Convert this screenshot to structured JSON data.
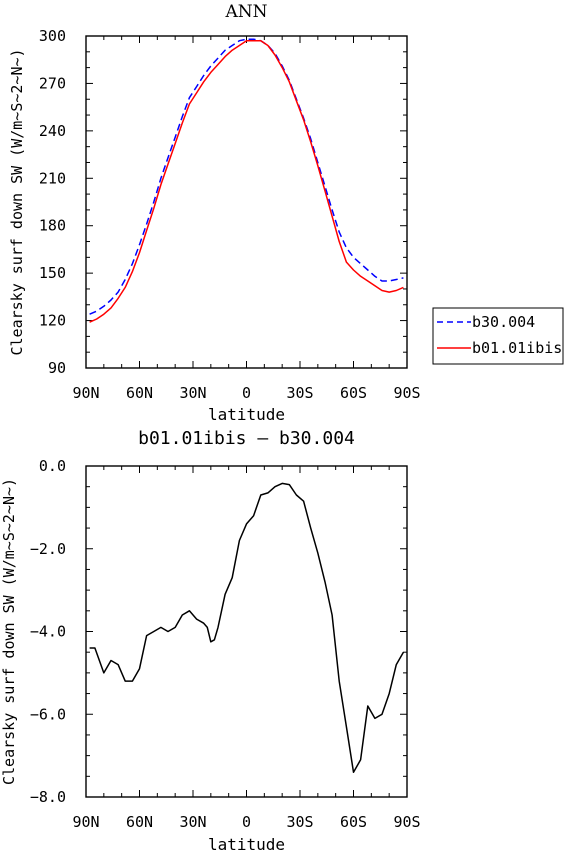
{
  "chart_data": [
    {
      "type": "line",
      "title": "ANN",
      "xlabel": "latitude",
      "ylabel": "Clearsky surf down SW (W/m~S~2~N~)",
      "xlim": [
        90,
        -90
      ],
      "ylim": [
        90,
        300
      ],
      "x_ticks": [
        90,
        60,
        30,
        0,
        -30,
        -60,
        -90
      ],
      "x_tick_labels": [
        "90N",
        "60N",
        "30N",
        "0",
        "30S",
        "60S",
        "90S"
      ],
      "y_ticks": [
        90,
        120,
        150,
        180,
        210,
        240,
        270,
        300
      ],
      "y_tick_labels": [
        "90",
        "120",
        "150",
        "180",
        "210",
        "240",
        "270",
        "300"
      ],
      "legend_position": "right",
      "series": [
        {
          "name": "b30.004",
          "color": "#0000ff",
          "style": "dashed",
          "x": [
            88,
            84,
            80,
            76,
            72,
            68,
            64,
            60,
            56,
            52,
            48,
            44,
            40,
            36,
            32,
            28,
            24,
            20,
            16,
            12,
            8,
            4,
            0,
            -4,
            -8,
            -12,
            -16,
            -20,
            -24,
            -28,
            -32,
            -36,
            -40,
            -44,
            -48,
            -52,
            -56,
            -60,
            -64,
            -68,
            -72,
            -76,
            -80,
            -84,
            -88
          ],
          "values": [
            124,
            126,
            129,
            133,
            138,
            146,
            156,
            168,
            181,
            195,
            210,
            223,
            236,
            249,
            261,
            268,
            275,
            281,
            286,
            291,
            294,
            297,
            298,
            298,
            297,
            294,
            289,
            281,
            272,
            260,
            248,
            235,
            220,
            205,
            190,
            176,
            166,
            160,
            156,
            152,
            148,
            145,
            145,
            146,
            147
          ]
        },
        {
          "name": "b01.01ibis",
          "color": "#ff0000",
          "style": "solid",
          "x": [
            88,
            84,
            80,
            76,
            72,
            68,
            64,
            60,
            56,
            52,
            48,
            44,
            40,
            36,
            32,
            28,
            24,
            20,
            16,
            12,
            8,
            4,
            0,
            -4,
            -8,
            -12,
            -16,
            -20,
            -24,
            -28,
            -32,
            -36,
            -40,
            -44,
            -48,
            -52,
            -56,
            -60,
            -64,
            -68,
            -72,
            -76,
            -80,
            -84,
            -88
          ],
          "values": [
            119,
            121,
            124,
            128,
            134,
            141,
            151,
            163,
            177,
            191,
            206,
            219,
            232,
            245,
            257,
            264,
            271,
            277,
            282,
            287,
            291,
            294,
            297,
            297,
            297,
            294,
            288,
            280,
            271,
            259,
            247,
            233,
            218,
            202,
            186,
            170,
            157,
            152,
            148,
            145,
            142,
            139,
            138,
            139,
            141
          ]
        }
      ]
    },
    {
      "type": "line",
      "title": "b01.01ibis – b30.004",
      "xlabel": "latitude",
      "ylabel": "Clearsky surf down SW (W/m~S~2~N~)",
      "xlim": [
        90,
        -90
      ],
      "ylim": [
        -8.0,
        0.0
      ],
      "x_ticks": [
        90,
        60,
        30,
        0,
        -30,
        -60,
        -90
      ],
      "x_tick_labels": [
        "90N",
        "60N",
        "30N",
        "0",
        "30S",
        "60S",
        "90S"
      ],
      "y_ticks": [
        -8.0,
        -6.0,
        -4.0,
        -2.0,
        0.0
      ],
      "y_tick_labels": [
        "−8.0",
        "−6.0",
        "−4.0",
        "−2.0",
        "0.0"
      ],
      "series": [
        {
          "color": "#000000",
          "style": "solid",
          "x": [
            88,
            85,
            80,
            76,
            72,
            68,
            64,
            60,
            56,
            52,
            48,
            44,
            40,
            36,
            32,
            28,
            24,
            22,
            20,
            18,
            16,
            12,
            8,
            4,
            0,
            -4,
            -8,
            -12,
            -16,
            -20,
            -24,
            -28,
            -32,
            -36,
            -40,
            -44,
            -48,
            -52,
            -56,
            -60,
            -64,
            -68,
            -72,
            -76,
            -80,
            -84,
            -88
          ],
          "values": [
            -4.4,
            -4.4,
            -5.0,
            -4.7,
            -4.8,
            -5.2,
            -5.2,
            -4.9,
            -4.1,
            -4.0,
            -3.9,
            -4.0,
            -3.9,
            -3.6,
            -3.5,
            -3.7,
            -3.8,
            -3.9,
            -4.25,
            -4.2,
            -3.9,
            -3.1,
            -2.7,
            -1.8,
            -1.4,
            -1.2,
            -0.7,
            -0.65,
            -0.5,
            -0.42,
            -0.45,
            -0.7,
            -0.85,
            -1.5,
            -2.1,
            -2.8,
            -3.6,
            -5.2,
            -6.3,
            -7.4,
            -7.1,
            -5.8,
            -6.1,
            -6.0,
            -5.5,
            -4.8,
            -4.5
          ]
        }
      ]
    }
  ]
}
